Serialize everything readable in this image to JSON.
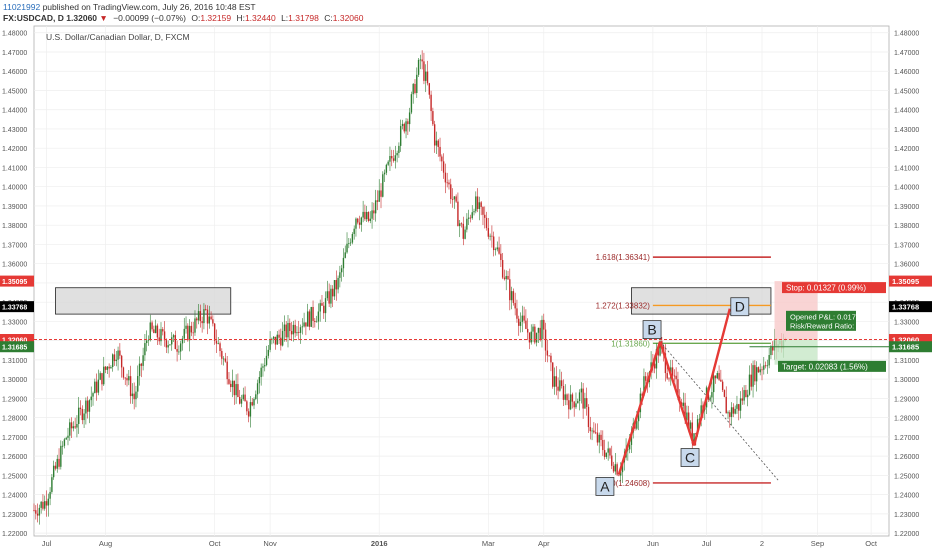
{
  "header": {
    "user": "11021992",
    "published_text": "published on TradingView.com, July 26, 2016 10:48 EST",
    "symbol": "FX:USDCAD, D",
    "last": "1.32060",
    "change_arrow": "▼",
    "change": "−0.00099 (−0.07%)",
    "open_label": "O:",
    "open": "1.32159",
    "high_label": "H:",
    "high": "1.32440",
    "low_label": "L:",
    "low": "1.31798",
    "close_label": "C:",
    "close": "1.32060"
  },
  "chart_data": {
    "type": "candlestick",
    "title": "U.S. Dollar/Canadian Dollar, D, FXCM",
    "y_ticks": [
      "1.48000",
      "1.47000",
      "1.46000",
      "1.45000",
      "1.44000",
      "1.43000",
      "1.42000",
      "1.41000",
      "1.40000",
      "1.39000",
      "1.38000",
      "1.37000",
      "1.36000",
      "1.35000",
      "1.34000",
      "1.33000",
      "1.32000",
      "1.31000",
      "1.30000",
      "1.29000",
      "1.28000",
      "1.27000",
      "1.26000",
      "1.25000",
      "1.24000",
      "1.23000",
      "1.22000"
    ],
    "ylim": [
      1.2185,
      1.4835
    ],
    "x_ticks": [
      {
        "label": "Jul",
        "day": 7
      },
      {
        "label": "Aug",
        "day": 40
      },
      {
        "label": "Oct",
        "day": 101
      },
      {
        "label": "Nov",
        "day": 132
      },
      {
        "label": "2016",
        "day": 193
      },
      {
        "label": "Mar",
        "day": 254
      },
      {
        "label": "Apr",
        "day": 285
      },
      {
        "label": "Jun",
        "day": 346
      },
      {
        "label": "Jul",
        "day": 376
      },
      {
        "label": "2",
        "day": 407
      },
      {
        "label": "Sep",
        "day": 438
      },
      {
        "label": "Oct",
        "day": 468
      }
    ],
    "xlim": [
      0,
      478
    ],
    "price_anchors": [
      [
        0,
        1.232
      ],
      [
        6,
        1.236
      ],
      [
        18,
        1.27
      ],
      [
        30,
        1.288
      ],
      [
        46,
        1.315
      ],
      [
        56,
        1.29
      ],
      [
        64,
        1.325
      ],
      [
        80,
        1.318
      ],
      [
        96,
        1.335
      ],
      [
        106,
        1.31
      ],
      [
        114,
        1.29
      ],
      [
        120,
        1.285
      ],
      [
        132,
        1.318
      ],
      [
        146,
        1.328
      ],
      [
        160,
        1.335
      ],
      [
        170,
        1.35
      ],
      [
        180,
        1.385
      ],
      [
        188,
        1.382
      ],
      [
        198,
        1.41
      ],
      [
        210,
        1.44
      ],
      [
        216,
        1.466
      ],
      [
        220,
        1.452
      ],
      [
        224,
        1.425
      ],
      [
        232,
        1.4
      ],
      [
        240,
        1.375
      ],
      [
        246,
        1.392
      ],
      [
        252,
        1.382
      ],
      [
        258,
        1.37
      ],
      [
        266,
        1.345
      ],
      [
        272,
        1.33
      ],
      [
        278,
        1.322
      ],
      [
        284,
        1.326
      ],
      [
        290,
        1.3
      ],
      [
        300,
        1.288
      ],
      [
        306,
        1.292
      ],
      [
        312,
        1.272
      ],
      [
        320,
        1.262
      ],
      [
        327,
        1.253
      ],
      [
        332,
        1.262
      ],
      [
        340,
        1.295
      ],
      [
        350,
        1.317
      ],
      [
        354,
        1.305
      ],
      [
        362,
        1.29
      ],
      [
        368,
        1.27
      ],
      [
        374,
        1.288
      ],
      [
        382,
        1.3
      ],
      [
        388,
        1.282
      ],
      [
        394,
        1.286
      ],
      [
        402,
        1.303
      ],
      [
        408,
        1.308
      ],
      [
        414,
        1.317
      ],
      [
        420,
        1.3206
      ]
    ],
    "levels": [
      {
        "label": "1.618(1.36341)",
        "price": 1.36341,
        "color": "#c62828"
      },
      {
        "label": "1.272(1.33832)",
        "price": 1.33832,
        "color": "#f59a23"
      },
      {
        "label": "1(1.31860)",
        "price": 1.3186,
        "color": "#6aa84f"
      },
      {
        "label": "0(1.24608)",
        "price": 1.24608,
        "color": "#c62828"
      }
    ],
    "price_labels": [
      {
        "text": "1.35095",
        "price": 1.35095,
        "bg": "#e53935"
      },
      {
        "text": "1.33768",
        "price": 1.33768,
        "bg": "#000000"
      },
      {
        "text": "1.32060",
        "price": 1.3206,
        "bg": "#e53935"
      },
      {
        "text": "1.31685",
        "price": 1.31685,
        "bg": "#2e7d32"
      }
    ],
    "current_price": 1.3206,
    "pattern_points": [
      {
        "label": "A",
        "day": 327,
        "price": 1.2505
      },
      {
        "label": "B",
        "day": 350,
        "price": 1.3195
      },
      {
        "label": "C",
        "day": 369,
        "price": 1.2655
      },
      {
        "label": "D",
        "day": 389,
        "price": 1.3366
      }
    ],
    "zones": [
      {
        "name": "left-resistance",
        "from_day": 12,
        "to_day": 110,
        "high": 1.3475,
        "low": 1.3338
      },
      {
        "name": "target-zone",
        "from_day": 334,
        "to_day": 412,
        "high": 1.3475,
        "low": 1.3338
      }
    ],
    "position": {
      "entry": 1.3206,
      "stop": 1.35095,
      "target": 1.31685,
      "stop_label": "Stop: 0.01327 (0.99%)",
      "target_label": "Target: 0.02083 (1.56%)",
      "pnl_label": "Opened P&L: 0.01708",
      "rr_label": "Risk/Reward Ratio: 1.57",
      "from_day": 414,
      "to_day": 438
    },
    "trend_line": {
      "from_day": 350,
      "from_price": 1.3195,
      "to_day": 416,
      "to_price": 1.2475
    },
    "grid": true,
    "colors": {
      "up": "#2e7d32",
      "down": "#c62828",
      "pattern": "#e53935"
    }
  }
}
